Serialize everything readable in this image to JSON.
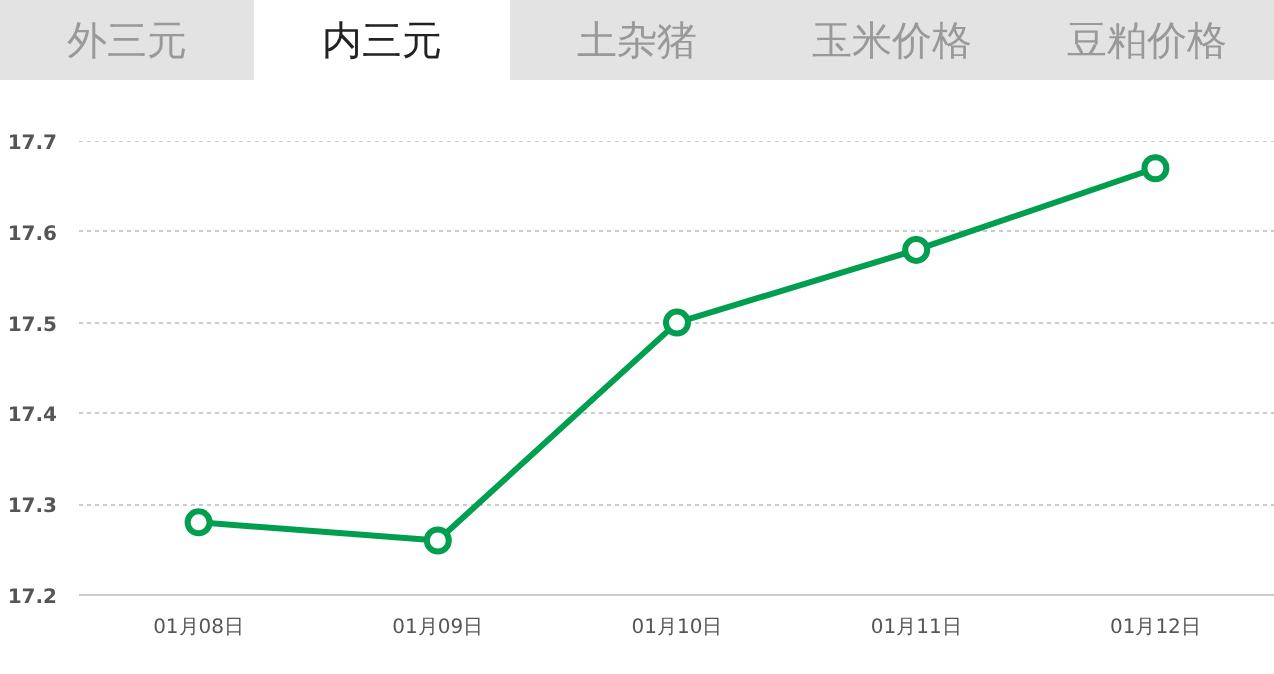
{
  "chart_data": {
    "type": "line",
    "annotations": [
      "外三元",
      "内三元",
      "土杂猪",
      "玉米价格",
      "豆粕价格"
    ],
    "categories": [
      "01月08日",
      "01月09日",
      "01月10日",
      "01月11日",
      "01月12日"
    ],
    "series": [
      {
        "color": "#009e4f",
        "values": [
          17.28,
          17.26,
          17.5,
          17.58,
          17.67
        ]
      }
    ],
    "ylim": [
      17.2,
      17.7
    ],
    "yticks": [
      17.2,
      17.3,
      17.4,
      17.5,
      17.6,
      17.7
    ],
    "grid": "y",
    "marker": "circle",
    "line_style": "solid"
  }
}
